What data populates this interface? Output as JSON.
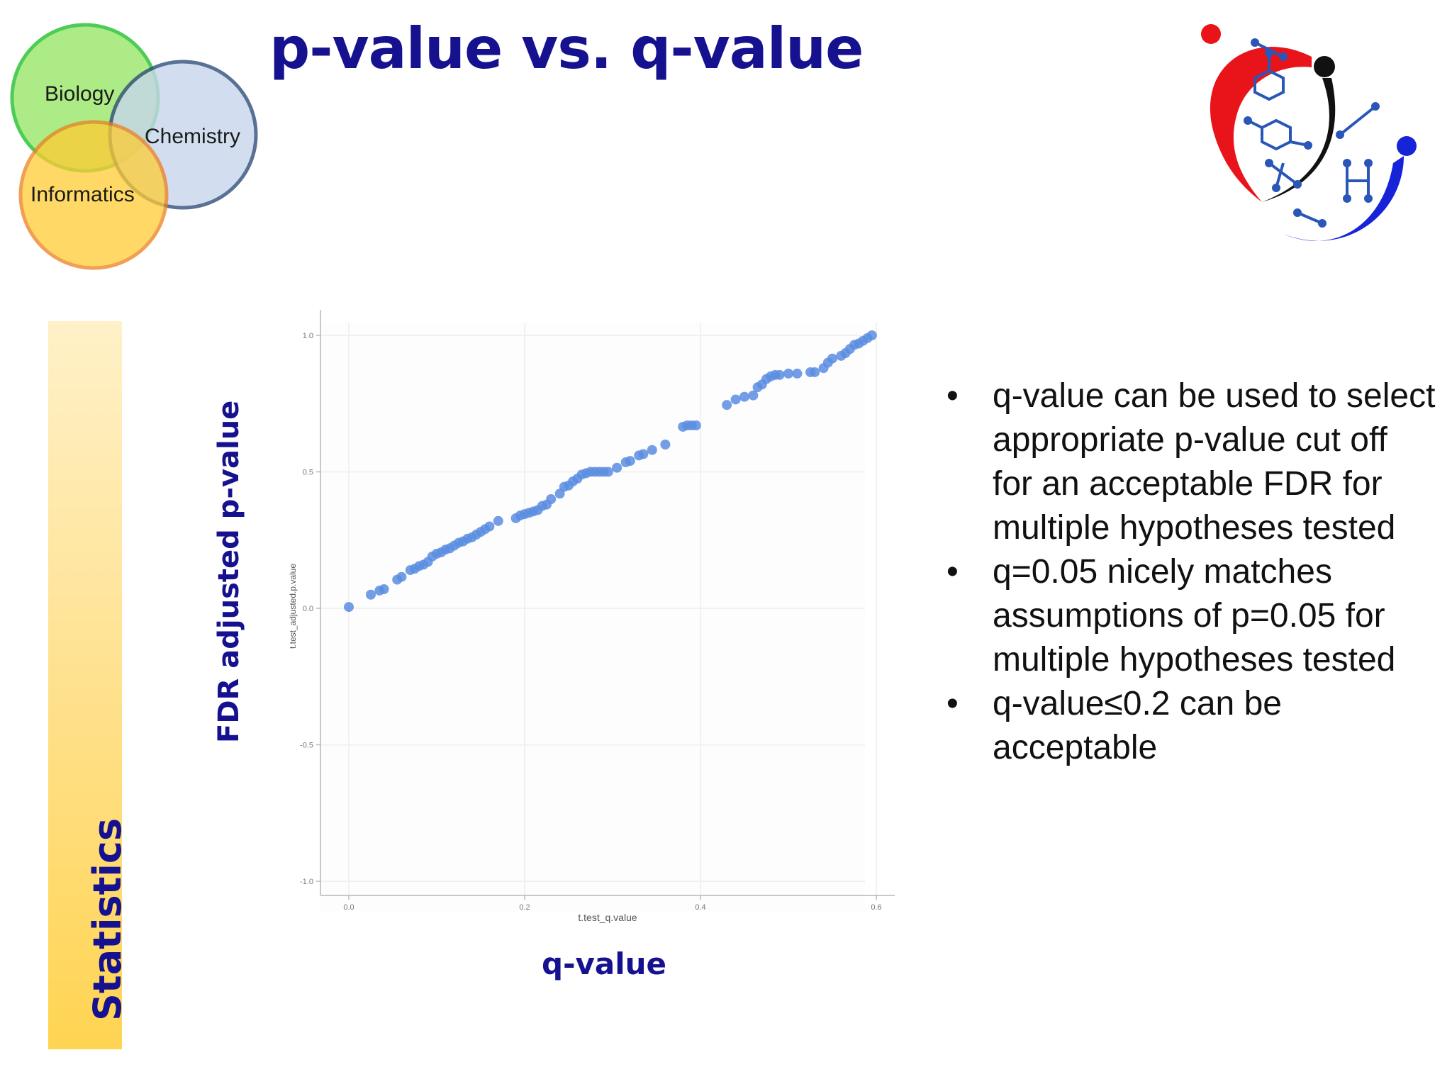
{
  "slide": {
    "title": "p-value vs. q-value",
    "side_label": "Statistics",
    "y_axis_label": "FDR adjusted p-value",
    "x_axis_label": "q-value"
  },
  "venn": {
    "circles": [
      {
        "label": "Biology",
        "fill": "#9ee872",
        "stroke": "#2ec43a"
      },
      {
        "label": "Chemistry",
        "fill": "#c7d6ec",
        "stroke": "#2f4e7a"
      },
      {
        "label": "Informatics",
        "fill": "#ffcc33",
        "stroke": "#ee7f1e"
      }
    ]
  },
  "logo": {
    "icon": "molecule-heart-logo-icon",
    "colors": {
      "red": "#e8141a",
      "blue": "#1623d8",
      "black": "#111111",
      "molecule": "#2a56b8"
    }
  },
  "bullets": [
    "q-value  can be used to select appropriate p-value cut off for an acceptable FDR for multiple hypotheses tested",
    "q=0.05 nicely matches assumptions of p=0.05 for multiple hypotheses tested",
    "q-value≤0.2 can be acceptable"
  ],
  "bullet_symbol": "•",
  "chart_data": {
    "type": "scatter",
    "xlabel": "t.test_q.value",
    "ylabel": "t.test_adjusted.p.value",
    "xlim": [
      0,
      0.6
    ],
    "ylim": [
      -1.0,
      1.0
    ],
    "x_ticks": [
      "0.0",
      "0.2",
      "0.4",
      "0.6"
    ],
    "y_ticks": [
      "1.0",
      "0.5",
      "0.0",
      "-0.5",
      "-1.0"
    ],
    "x_tick_values": [
      0,
      0.2,
      0.4,
      0.6
    ],
    "y_tick_values": [
      1.0,
      0.5,
      0.0,
      -0.5,
      -1.0
    ],
    "grid": true,
    "point_color": "#5b8de0",
    "series": [
      {
        "x": [
          0.0,
          0.025,
          0.035,
          0.04,
          0.055,
          0.06,
          0.07,
          0.075,
          0.08,
          0.085,
          0.09,
          0.095,
          0.1,
          0.105,
          0.11,
          0.115,
          0.12,
          0.125,
          0.13,
          0.135,
          0.14,
          0.145,
          0.15,
          0.155,
          0.16,
          0.17,
          0.19,
          0.195,
          0.2,
          0.205,
          0.21,
          0.215,
          0.22,
          0.225,
          0.23,
          0.24,
          0.245,
          0.25,
          0.255,
          0.26,
          0.265,
          0.27,
          0.275,
          0.28,
          0.285,
          0.29,
          0.295,
          0.305,
          0.315,
          0.32,
          0.33,
          0.335,
          0.345,
          0.36,
          0.38,
          0.385,
          0.39,
          0.395,
          0.43,
          0.44,
          0.45,
          0.46,
          0.465,
          0.47,
          0.475,
          0.48,
          0.485,
          0.49,
          0.5,
          0.51,
          0.525,
          0.53,
          0.54,
          0.545,
          0.55,
          0.56,
          0.565,
          0.57,
          0.575,
          0.58,
          0.585,
          0.59,
          0.595
        ],
        "y": [
          0.005,
          0.05,
          0.065,
          0.07,
          0.105,
          0.115,
          0.14,
          0.145,
          0.155,
          0.16,
          0.17,
          0.19,
          0.2,
          0.205,
          0.215,
          0.22,
          0.23,
          0.24,
          0.245,
          0.255,
          0.26,
          0.27,
          0.28,
          0.29,
          0.3,
          0.32,
          0.33,
          0.34,
          0.345,
          0.35,
          0.355,
          0.36,
          0.375,
          0.38,
          0.4,
          0.42,
          0.445,
          0.45,
          0.465,
          0.475,
          0.49,
          0.495,
          0.5,
          0.5,
          0.5,
          0.5,
          0.5,
          0.515,
          0.535,
          0.54,
          0.56,
          0.565,
          0.58,
          0.6,
          0.665,
          0.67,
          0.67,
          0.67,
          0.745,
          0.765,
          0.775,
          0.78,
          0.81,
          0.82,
          0.84,
          0.85,
          0.855,
          0.855,
          0.86,
          0.86,
          0.865,
          0.865,
          0.88,
          0.9,
          0.915,
          0.925,
          0.935,
          0.95,
          0.965,
          0.97,
          0.98,
          0.99,
          1.0
        ]
      }
    ]
  }
}
